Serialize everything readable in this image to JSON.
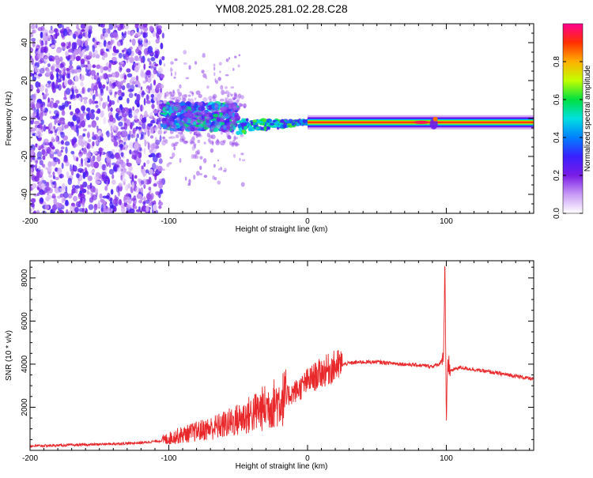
{
  "title": "YM08.2025.281.02.28.C28",
  "chart_data": [
    {
      "type": "heatmap",
      "name": "spectrogram",
      "xlabel": "Height of straight line (km)",
      "ylabel": "Frequency (Hz)",
      "xlim": [
        -200,
        163
      ],
      "ylim": [
        -50,
        50
      ],
      "xticks": [
        -200,
        -100,
        0,
        100
      ],
      "yticks": [
        -40,
        -20,
        0,
        20,
        40
      ],
      "colorbar": {
        "label": "Normalized spectral amplitude",
        "range": [
          0,
          1
        ],
        "ticks": [
          "0.0",
          "0.2",
          "0.4",
          "0.6",
          "0.8"
        ],
        "colors": [
          "#ffffff",
          "#c89af5",
          "#7a1ce6",
          "#3a20ff",
          "#0080ff",
          "#00e0e0",
          "#00e040",
          "#c0ff00",
          "#ffb000",
          "#ff3000",
          "#ff0090"
        ]
      },
      "regions": [
        {
          "label": "scattered noise",
          "x": [
            -200,
            -104
          ],
          "freq": [
            -50,
            50
          ],
          "amplitude": 0.15
        },
        {
          "label": "burst cluster",
          "x": [
            -104,
            -50
          ],
          "freq": [
            -6,
            8
          ],
          "amplitude": 0.35
        },
        {
          "label": "converging trace",
          "x": [
            -50,
            0
          ],
          "freq": [
            -5,
            3
          ],
          "amplitude": 0.5
        },
        {
          "label": "steady carrier line",
          "x": [
            0,
            163
          ],
          "freq": [
            -2,
            -2
          ],
          "amplitude": 0.9
        }
      ]
    },
    {
      "type": "line",
      "name": "snr",
      "xlabel": "Height of straight line (km)",
      "ylabel": "SNR (10 * v/v)",
      "xlim": [
        -200,
        163
      ],
      "ylim": [
        0,
        8800
      ],
      "xticks": [
        -200,
        -100,
        0,
        100
      ],
      "yticks": [
        2000,
        4000,
        6000,
        8000
      ],
      "color": "#e8282a",
      "x": [
        -200,
        -180,
        -160,
        -140,
        -120,
        -105,
        -95,
        -85,
        -75,
        -65,
        -55,
        -45,
        -35,
        -25,
        -15,
        -5,
        0,
        10,
        20,
        30,
        40,
        50,
        60,
        70,
        80,
        90,
        95,
        98,
        99,
        100,
        101,
        103,
        110,
        120,
        130,
        140,
        150,
        163
      ],
      "y": [
        200,
        230,
        260,
        300,
        350,
        450,
        650,
        800,
        950,
        1100,
        1300,
        1550,
        1850,
        2150,
        2500,
        2900,
        3200,
        3600,
        3900,
        4050,
        4100,
        4100,
        4050,
        4000,
        3950,
        3900,
        4000,
        4400,
        8700,
        1100,
        4100,
        3700,
        3850,
        3750,
        3650,
        3550,
        3450,
        3300
      ]
    }
  ]
}
